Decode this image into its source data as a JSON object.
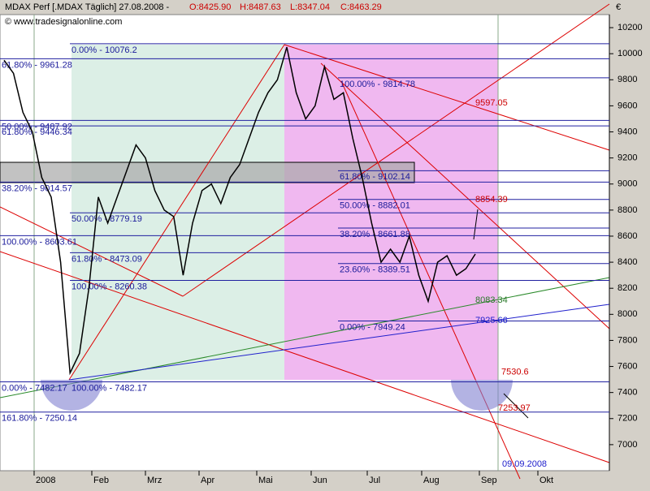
{
  "header": {
    "title": "MDAX Perf [.MDAX Täglich] 27.08.2008 -",
    "ohlc": [
      "O:8425.90",
      "H:8487.63",
      "L:8347.04",
      "C:8463.29"
    ],
    "copyright": "© www.tradesignalonline.com"
  },
  "chart_data": {
    "type": "line",
    "color": "#000000",
    "currency": "€",
    "values": [
      9950,
      9850,
      9550,
      9400,
      9050,
      8900,
      8400,
      7550,
      7700,
      8200,
      8900,
      8700,
      8900,
      9100,
      9300,
      9200,
      8950,
      8800,
      8750,
      8300,
      8700,
      8950,
      9000,
      8850,
      9050,
      9150,
      9350,
      9550,
      9700,
      9800,
      10050,
      9700,
      9500,
      9600,
      9900,
      9650,
      9700,
      9350,
      9050,
      8700,
      8400,
      8500,
      8400,
      8600,
      8300,
      8100,
      8400,
      8450,
      8300,
      8350,
      8463
    ],
    "ylim": [
      6800,
      10300
    ],
    "yticks": [
      7000,
      7200,
      7400,
      7600,
      7800,
      8000,
      8200,
      8400,
      8600,
      8800,
      9000,
      9200,
      9400,
      9600,
      9800,
      10000,
      10200
    ],
    "x_labels": [
      "2008",
      "Feb",
      "Mrz",
      "Apr",
      "Mai",
      "Jun",
      "Jul",
      "Aug",
      "Sep",
      "Okt"
    ],
    "levels_left": [
      {
        "label": "61.80% - 9961.28",
        "value": 9961.28
      },
      {
        "label": "50.00% - 9487.92",
        "value": 9487.92
      },
      {
        "label": "61.80% - 9446.34",
        "value": 9446.34
      },
      {
        "label": "38.20% - 9014.57",
        "value": 9014.57
      },
      {
        "label": "100.00% - 8603.61",
        "value": 8603.61
      },
      {
        "label": "0.00% - 7482.17",
        "value": 7482.17
      },
      {
        "label": "161.80% - 7250.14",
        "value": 7250.14
      }
    ],
    "levels_mid": [
      {
        "label": "0.00% - 10076.2",
        "value": 10076.2
      },
      {
        "label": "50.00% - 8779.19",
        "value": 8779.19
      },
      {
        "label": "61.80% - 8473.09",
        "value": 8473.09
      },
      {
        "label": "100.00% - 8260.38",
        "value": 8260.38
      },
      {
        "label": "100.00% - 7482.17",
        "value": 7482.17
      }
    ],
    "levels_right": [
      {
        "label": "100.00% - 9814.78",
        "value": 9814.78
      },
      {
        "label": "61.80% - 9102.14",
        "value": 9102.14
      },
      {
        "label": "50.00% - 8882.01",
        "value": 8882.01
      },
      {
        "label": "38.20% - 8661.88",
        "value": 8661.88
      },
      {
        "label": "23.60% - 8389.51",
        "value": 8389.51
      },
      {
        "label": "0.00% - 7949.24",
        "value": 7949.24
      }
    ],
    "annotations": [
      {
        "value": 9597.05,
        "color": "#cc0000"
      },
      {
        "value": 8854.39,
        "color": "#cc0000"
      },
      {
        "value": 8083.34,
        "color": "#2a7a2a"
      },
      {
        "value": 7925.66,
        "color": "#2020cc"
      },
      {
        "value": 7530.6,
        "color": "#cc0000"
      },
      {
        "value": 7253.97,
        "color": "#cc0000"
      }
    ],
    "date_note": "09.09.2008"
  }
}
